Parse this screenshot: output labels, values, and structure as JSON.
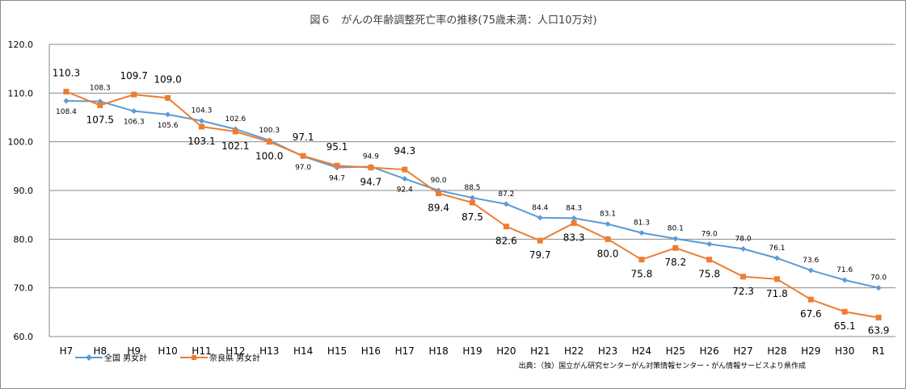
{
  "chart_data": {
    "type": "line",
    "title": "図６　がんの年齢調整死亡率の推移(75歳未満：人口10万対)",
    "categories": [
      "H7",
      "H8",
      "H9",
      "H10",
      "H11",
      "H12",
      "H13",
      "H14",
      "H15",
      "H16",
      "H17",
      "H18",
      "H19",
      "H20",
      "H21",
      "H22",
      "H23",
      "H24",
      "H25",
      "H26",
      "H27",
      "H28",
      "H29",
      "H30",
      "R1"
    ],
    "series": [
      {
        "name": "全国 男女計",
        "color": "#5b9bd5",
        "marker": "diamond",
        "values": [
          108.4,
          108.3,
          106.3,
          105.6,
          104.3,
          102.6,
          100.3,
          97.0,
          94.7,
          94.9,
          92.4,
          90.0,
          88.5,
          87.2,
          84.4,
          84.3,
          83.1,
          81.3,
          80.1,
          79.0,
          78.0,
          76.1,
          73.6,
          71.6,
          70.0
        ],
        "value_labels": [
          "108.4",
          "108.3",
          "106.3",
          "105.6",
          "104.3",
          "102.6",
          "100.3",
          "97.0",
          "94.7",
          "94.9",
          "92.4",
          "90.0",
          "88.5",
          "87.2",
          "84.4",
          "84.3",
          "83.1",
          "81.3",
          "80.1",
          "79.0",
          "78.0",
          "76.1",
          "73.6",
          "71.6",
          "70.0"
        ]
      },
      {
        "name": "奈良県 男女計",
        "color": "#ed7d31",
        "marker": "square",
        "values": [
          110.3,
          107.5,
          109.7,
          109.0,
          103.1,
          102.1,
          100.0,
          97.1,
          95.1,
          94.7,
          94.3,
          89.4,
          87.5,
          82.6,
          79.7,
          83.3,
          80.0,
          75.8,
          78.2,
          75.8,
          72.3,
          71.8,
          67.6,
          65.1,
          63.9
        ],
        "value_labels": [
          "110.3",
          "107.5",
          "109.7",
          "109.0",
          "103.1",
          "102.1",
          "100.0",
          "97.1",
          "95.1",
          "94.7",
          "94.3",
          "89.4",
          "87.5",
          "82.6",
          "79.7",
          "83.3",
          "80.0",
          "75.8",
          "78.2",
          "75.8",
          "72.3",
          "71.8",
          "67.6",
          "65.1",
          "63.9"
        ]
      }
    ],
    "ylim": [
      60.0,
      120.0
    ],
    "yticks": [
      "60.0",
      "70.0",
      "80.0",
      "90.0",
      "100.0",
      "110.0",
      "120.0"
    ],
    "grid": true,
    "legend": "bottom-left",
    "xlabel": "",
    "ylabel": ""
  },
  "source_note": "出典：（独）国立がん研究センターがん対策情報センター・がん情報サービスより県作成"
}
